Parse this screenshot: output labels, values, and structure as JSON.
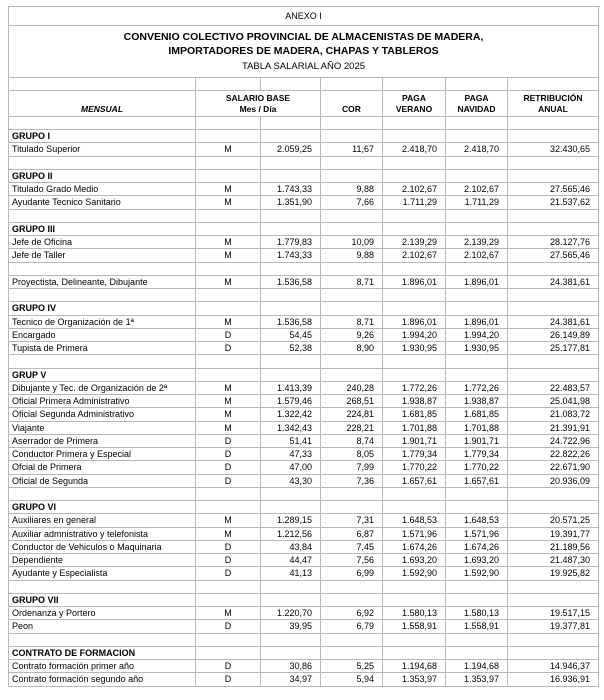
{
  "page": {
    "anexo": "ANEXO I",
    "title_line1": "CONVENIO COLECTIVO PROVINCIAL DE ALMACENISTAS DE MADERA,",
    "title_line2": "IMPORTADORES DE MADERA, CHAPAS Y TABLEROS",
    "subtitle": "TABLA SALARIAL AÑO 2025"
  },
  "header": {
    "mensual": "MENSUAL",
    "salario_line1": "SALARIO BASE",
    "salario_line2": "Mes / Día",
    "cor": "COR",
    "verano_line1": "PAGA",
    "verano_line2": "VERANO",
    "navidad_line1": "PAGA",
    "navidad_line2": "NAVIDAD",
    "retribucion_line1": "RETRIBUCIÓN",
    "retribucion_line2": "ANUAL"
  },
  "colors": {
    "gridline": "#b7b7b7",
    "text": "#000000",
    "background": "#ffffff"
  },
  "rows": [
    {
      "type": "group",
      "label": "GRUPO I"
    },
    {
      "type": "data",
      "label": "Titulado Superior",
      "md": "M",
      "base": "2.059,25",
      "cor": "11,67",
      "verano": "2.418,70",
      "navidad": "2.418,70",
      "anual": "32.430,65"
    },
    {
      "type": "blank"
    },
    {
      "type": "group",
      "label": "GRUPO II"
    },
    {
      "type": "data",
      "label": "Titulado Grado Medio",
      "md": "M",
      "base": "1.743,33",
      "cor": "9,88",
      "verano": "2.102,67",
      "navidad": "2.102,67",
      "anual": "27.565,46"
    },
    {
      "type": "data",
      "label": "Ayudante Tecnico Sanitario",
      "md": "M",
      "base": "1.351,90",
      "cor": "7,66",
      "verano": "1.711,29",
      "navidad": "1.711,29",
      "anual": "21.537,62"
    },
    {
      "type": "blank"
    },
    {
      "type": "group",
      "label": "GRUPO III"
    },
    {
      "type": "data",
      "label": "Jefe de Oficina",
      "md": "M",
      "base": "1.779,83",
      "cor": "10,09",
      "verano": "2.139,29",
      "navidad": "2.139,29",
      "anual": "28.127,76"
    },
    {
      "type": "data",
      "label": "Jefe de Taller",
      "md": "M",
      "base": "1.743,33",
      "cor": "9,88",
      "verano": "2.102,67",
      "navidad": "2.102,67",
      "anual": "27.565,46"
    },
    {
      "type": "blank"
    },
    {
      "type": "data",
      "label": "Proyectista, Delineante, Dibujante",
      "md": "M",
      "base": "1.536,58",
      "cor": "8,71",
      "verano": "1.896,01",
      "navidad": "1.896,01",
      "anual": "24.381,61"
    },
    {
      "type": "blank"
    },
    {
      "type": "group",
      "label": "GRUPO IV"
    },
    {
      "type": "data",
      "label": "Tecnico de Organización de 1ª",
      "md": "M",
      "base": "1.536,58",
      "cor": "8,71",
      "verano": "1.896,01",
      "navidad": "1.896,01",
      "anual": "24.381,61"
    },
    {
      "type": "data",
      "label": "Encargado",
      "md": "D",
      "base": "54,45",
      "cor": "9,26",
      "verano": "1.994,20",
      "navidad": "1.994,20",
      "anual": "26.149,89"
    },
    {
      "type": "data",
      "label": "Tupista de Primera",
      "md": "D",
      "base": "52,38",
      "cor": "8,90",
      "verano": "1.930,95",
      "navidad": "1.930,95",
      "anual": "25.177,81"
    },
    {
      "type": "blank"
    },
    {
      "type": "group",
      "label": "GRUP V"
    },
    {
      "type": "data",
      "label": "Dibujante y Tec. de Organización  de 2ª",
      "md": "M",
      "base": "1.413,39",
      "cor": "240,28",
      "verano": "1.772,26",
      "navidad": "1.772,26",
      "anual": "22.483,57"
    },
    {
      "type": "data",
      "label": "Oficial Primera Administrativo",
      "md": "M",
      "base": "1.579,46",
      "cor": "268,51",
      "verano": "1.938,87",
      "navidad": "1.938,87",
      "anual": "25.041,98"
    },
    {
      "type": "data",
      "label": "Oficial Segunda Administrativo",
      "md": "M",
      "base": "1.322,42",
      "cor": "224,81",
      "verano": "1.681,85",
      "navidad": "1.681,85",
      "anual": "21.083,72"
    },
    {
      "type": "data",
      "label": "Viajante",
      "md": "M",
      "base": "1.342,43",
      "cor": "228,21",
      "verano": "1.701,88",
      "navidad": "1.701,88",
      "anual": "21.391,91"
    },
    {
      "type": "data",
      "label": "Aserrador de Primera",
      "md": "D",
      "base": "51,41",
      "cor": "8,74",
      "verano": "1.901,71",
      "navidad": "1.901,71",
      "anual": "24.722,96"
    },
    {
      "type": "data",
      "label": "Conductor Primera y Especial",
      "md": "D",
      "base": "47,33",
      "cor": "8,05",
      "verano": "1.779,34",
      "navidad": "1.779,34",
      "anual": "22.822,26"
    },
    {
      "type": "data",
      "label": "Ofcial de Primera",
      "md": "D",
      "base": "47,00",
      "cor": "7,99",
      "verano": "1.770,22",
      "navidad": "1.770,22",
      "anual": "22.671,90"
    },
    {
      "type": "data",
      "label": "Oficial de Segunda",
      "md": "D",
      "base": "43,30",
      "cor": "7,36",
      "verano": "1.657,61",
      "navidad": "1.657,61",
      "anual": "20.936,09"
    },
    {
      "type": "blank"
    },
    {
      "type": "group",
      "label": "GRUPO VI"
    },
    {
      "type": "data",
      "label": "Auxiliares en general",
      "md": "M",
      "base": "1.289,15",
      "cor": "7,31",
      "verano": "1.648,53",
      "navidad": "1.648,53",
      "anual": "20.571,25"
    },
    {
      "type": "data",
      "label": "Auxiliar admnistrativo y telefonista",
      "md": "M",
      "base": "1.212,56",
      "cor": "6,87",
      "verano": "1.571,96",
      "navidad": "1.571,96",
      "anual": "19.391,77"
    },
    {
      "type": "data",
      "label": "Conductor de Vehiculos o Maquinaria",
      "md": "D",
      "base": "43,84",
      "cor": "7,45",
      "verano": "1.674,26",
      "navidad": "1.674,26",
      "anual": "21.189,56"
    },
    {
      "type": "data",
      "label": "Dependiente",
      "md": "D",
      "base": "44,47",
      "cor": "7,56",
      "verano": "1.693,20",
      "navidad": "1.693,20",
      "anual": "21.487,30"
    },
    {
      "type": "data",
      "label": "Ayudante y Especialista",
      "md": "D",
      "base": "41,13",
      "cor": "6,99",
      "verano": "1.592,90",
      "navidad": "1.592,90",
      "anual": "19.925,82"
    },
    {
      "type": "blank"
    },
    {
      "type": "group",
      "label": "GRUPO VII"
    },
    {
      "type": "data",
      "label": "Ordenanza y Portero",
      "md": "M",
      "base": "1.220,70",
      "cor": "6,92",
      "verano": "1.580,13",
      "navidad": "1.580,13",
      "anual": "19.517,15"
    },
    {
      "type": "data",
      "label": "Peon",
      "md": "D",
      "base": "39,95",
      "cor": "6,79",
      "verano": "1.558,91",
      "navidad": "1.558,91",
      "anual": "19.377,81"
    },
    {
      "type": "blank"
    },
    {
      "type": "group",
      "label": "CONTRATO DE FORMACION"
    },
    {
      "type": "data",
      "label": "Contrato formación primer año",
      "md": "D",
      "base": "30,86",
      "cor": "5,25",
      "verano": "1.194,68",
      "navidad": "1.194,68",
      "anual": "14.946,37"
    },
    {
      "type": "data",
      "label": "Contrato formación segundo año",
      "md": "D",
      "base": "34,97",
      "cor": "5,94",
      "verano": "1.353,97",
      "navidad": "1.353,97",
      "anual": "16.936,91"
    }
  ]
}
